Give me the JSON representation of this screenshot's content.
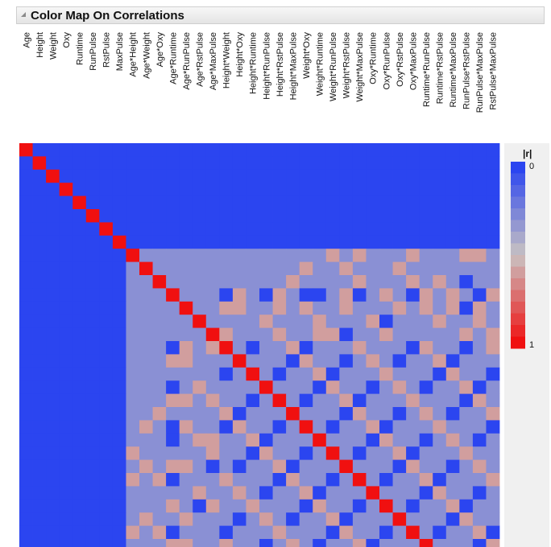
{
  "report": {
    "title": "Color Map On Correlations"
  },
  "chart_data": {
    "type": "heatmap",
    "title": "Color Map On Correlations",
    "metric": "|r|",
    "variables": [
      "Age",
      "Height",
      "Weight",
      "Oxy",
      "Runtime",
      "RunPulse",
      "RstPulse",
      "MaxPulse",
      "Age*Height",
      "Age*Weight",
      "Age*Oxy",
      "Age*Runtime",
      "Age*RunPulse",
      "Age*RstPulse",
      "Age*MaxPulse",
      "Height*Weight",
      "Height*Oxy",
      "Height*Runtime",
      "Height*RunPulse",
      "Height*RstPulse",
      "Height*MaxPulse",
      "Weight*Oxy",
      "Weight*Runtime",
      "Weight*RunPulse",
      "Weight*RstPulse",
      "Weight*MaxPulse",
      "Oxy*Runtime",
      "Oxy*RunPulse",
      "Oxy*RstPulse",
      "Oxy*MaxPulse",
      "Runtime*RunPulse",
      "Runtime*RstPulse",
      "Runtime*MaxPulse",
      "RunPulse*RstPulse",
      "RunPulse*MaxPulse",
      "RstPulse*MaxPulse"
    ],
    "note_on_visible_rows": "only the rows visible in the screenshot are listed (the matrix is cropped at the bottom); values are approximate |r| read from the colour scale",
    "abs_r_matrix": [
      [
        1,
        0,
        0,
        0,
        0,
        0,
        0,
        0,
        0,
        0,
        0,
        0,
        0,
        0,
        0,
        0,
        0,
        0,
        0,
        0,
        0,
        0,
        0,
        0,
        0,
        0,
        0,
        0,
        0,
        0,
        0,
        0,
        0,
        0,
        0,
        0
      ],
      [
        0,
        1,
        0,
        0,
        0,
        0,
        0,
        0,
        0,
        0,
        0,
        0,
        0,
        0,
        0,
        0,
        0,
        0,
        0,
        0,
        0,
        0,
        0,
        0,
        0,
        0,
        0,
        0,
        0,
        0,
        0,
        0,
        0,
        0,
        0,
        0
      ],
      [
        0,
        0,
        1,
        0,
        0,
        0,
        0,
        0,
        0,
        0,
        0,
        0,
        0,
        0,
        0,
        0,
        0,
        0,
        0,
        0,
        0,
        0,
        0,
        0,
        0,
        0,
        0,
        0,
        0,
        0,
        0,
        0,
        0,
        0,
        0,
        0
      ],
      [
        0,
        0,
        0,
        1,
        0,
        0,
        0,
        0,
        0,
        0,
        0,
        0,
        0,
        0,
        0,
        0,
        0,
        0,
        0,
        0,
        0,
        0,
        0,
        0,
        0,
        0,
        0,
        0,
        0,
        0,
        0,
        0,
        0,
        0,
        0,
        0
      ],
      [
        0,
        0,
        0,
        0,
        1,
        0,
        0,
        0,
        0,
        0,
        0,
        0,
        0,
        0,
        0,
        0,
        0,
        0,
        0,
        0,
        0,
        0,
        0,
        0,
        0,
        0,
        0,
        0,
        0,
        0,
        0,
        0,
        0,
        0,
        0,
        0
      ],
      [
        0,
        0,
        0,
        0,
        0,
        1,
        0,
        0,
        0,
        0,
        0,
        0,
        0,
        0,
        0,
        0,
        0,
        0,
        0,
        0,
        0,
        0,
        0,
        0,
        0,
        0,
        0,
        0,
        0,
        0,
        0,
        0,
        0,
        0,
        0,
        0
      ],
      [
        0,
        0,
        0,
        0,
        0,
        0,
        1,
        0,
        0,
        0,
        0,
        0,
        0,
        0,
        0,
        0,
        0,
        0,
        0,
        0,
        0,
        0,
        0,
        0,
        0,
        0,
        0,
        0,
        0,
        0,
        0,
        0,
        0,
        0,
        0,
        0
      ],
      [
        0,
        0,
        0,
        0,
        0,
        0,
        0,
        1,
        0,
        0,
        0,
        0,
        0,
        0,
        0,
        0,
        0,
        0,
        0,
        0,
        0,
        0,
        0,
        0,
        0,
        0,
        0,
        0,
        0,
        0,
        0,
        0,
        0,
        0,
        0,
        0
      ],
      [
        0,
        0,
        0,
        0,
        0,
        0,
        0,
        0,
        1,
        0.3,
        0.3,
        0.3,
        0.3,
        0.3,
        0.3,
        0.3,
        0.3,
        0.3,
        0.3,
        0.3,
        0.3,
        0.3,
        0.3,
        0.6,
        0.3,
        0.6,
        0.3,
        0.3,
        0.3,
        0.6,
        0.3,
        0.3,
        0.3,
        0.6,
        0.6,
        0.3
      ],
      [
        0,
        0,
        0,
        0,
        0,
        0,
        0,
        0,
        0.3,
        1,
        0.3,
        0.3,
        0.3,
        0.3,
        0.3,
        0.3,
        0.3,
        0.3,
        0.3,
        0.3,
        0.3,
        0.6,
        0.3,
        0.3,
        0.6,
        0.3,
        0.3,
        0.3,
        0.6,
        0.3,
        0.3,
        0.3,
        0.3,
        0.3,
        0.3,
        0.3
      ],
      [
        0,
        0,
        0,
        0,
        0,
        0,
        0,
        0,
        0.3,
        0.3,
        1,
        0.3,
        0.3,
        0.3,
        0.3,
        0.3,
        0.3,
        0.3,
        0.3,
        0.3,
        0.6,
        0.3,
        0.3,
        0.3,
        0.3,
        0.6,
        0.3,
        0.3,
        0.3,
        0.6,
        0.3,
        0.6,
        0.3,
        0,
        0.3,
        0.3
      ],
      [
        0,
        0,
        0,
        0,
        0,
        0,
        0,
        0,
        0.3,
        0.3,
        0.3,
        1,
        0.3,
        0.3,
        0.3,
        0,
        0.6,
        0.3,
        0,
        0.6,
        0.3,
        0,
        0,
        0.3,
        0.6,
        0,
        0.3,
        0.6,
        0.3,
        0,
        0.6,
        0.3,
        0.6,
        0.3,
        0,
        0.6
      ],
      [
        0,
        0,
        0,
        0,
        0,
        0,
        0,
        0,
        0.3,
        0.3,
        0.3,
        0.3,
        1,
        0.3,
        0.3,
        0.6,
        0.6,
        0.3,
        0.3,
        0.6,
        0.3,
        0.6,
        0.3,
        0.3,
        0.6,
        0.3,
        0.3,
        0.3,
        0.6,
        0.3,
        0.6,
        0.3,
        0.6,
        0,
        0.6,
        0.3
      ],
      [
        0,
        0,
        0,
        0,
        0,
        0,
        0,
        0,
        0.3,
        0.3,
        0.3,
        0.3,
        0.3,
        1,
        0.3,
        0.3,
        0.3,
        0.3,
        0.6,
        0.3,
        0.3,
        0.3,
        0.6,
        0.3,
        0.3,
        0.3,
        0.6,
        0,
        0.3,
        0.3,
        0.3,
        0.6,
        0.3,
        0.3,
        0.6,
        0.3
      ],
      [
        0,
        0,
        0,
        0,
        0,
        0,
        0,
        0,
        0.3,
        0.3,
        0.3,
        0.3,
        0.3,
        0.3,
        1,
        0.6,
        0.3,
        0.3,
        0.3,
        0.6,
        0.3,
        0.3,
        0.6,
        0.6,
        0,
        0.3,
        0.3,
        0.6,
        0.3,
        0.3,
        0.3,
        0.3,
        0.3,
        0.6,
        0.3,
        0.6
      ]
    ],
    "color_scale": {
      "min_label": "0",
      "max_label": "1",
      "low_color": "#2b45f0",
      "mid_color": "#c9c2c2",
      "high_color": "#f01010"
    }
  }
}
